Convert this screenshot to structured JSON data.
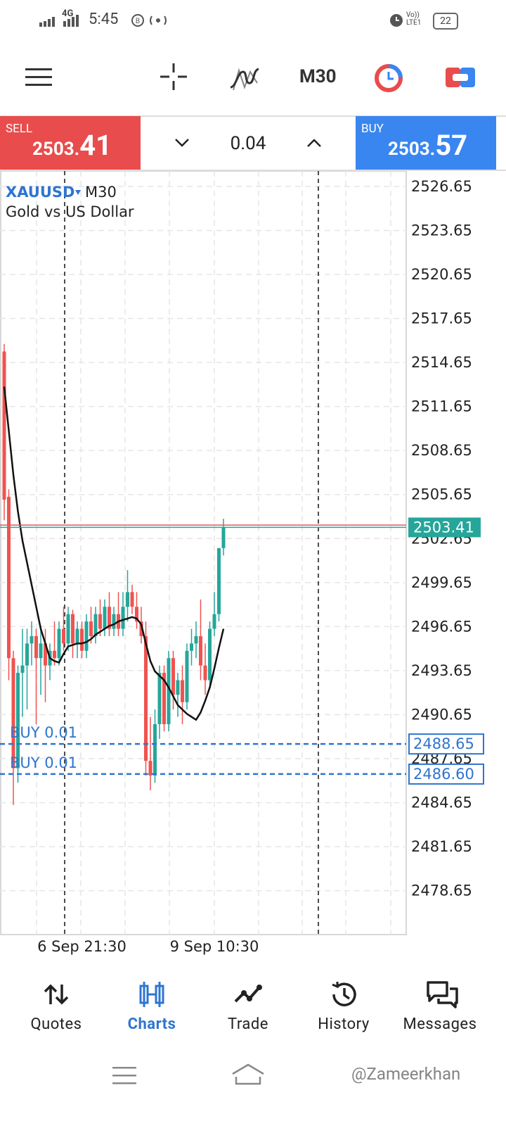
{
  "status_bar": {
    "network": "4G",
    "time": "5:45",
    "volte": "Vo)) LTE1",
    "battery": "22"
  },
  "toolbar": {
    "timeframe": "M30"
  },
  "trade_panel": {
    "sell": {
      "label": "SELL",
      "price_main": "2503.",
      "price_pips": "41"
    },
    "volume": "0.04",
    "buy": {
      "label": "BUY",
      "price_main": "2503.",
      "price_pips": "57"
    }
  },
  "chart_data": {
    "type": "candlestick",
    "symbol": "XAUUSD",
    "timeframe": "M30",
    "description": "Gold vs US Dollar",
    "categories": [
      null,
      null,
      null,
      null,
      null,
      null,
      null,
      null,
      null,
      null,
      null,
      null,
      null,
      null,
      null,
      null,
      null,
      "6 Sep 21:30",
      null,
      null,
      null,
      null,
      null,
      null,
      null,
      null,
      null,
      null,
      null,
      null,
      null,
      null,
      null,
      null,
      null,
      null,
      null,
      null,
      null,
      null,
      null,
      null,
      null,
      null,
      null,
      null,
      "9 Sep 10:30",
      null,
      null
    ],
    "open": [
      2515.4,
      2505.5,
      2494.5,
      2487,
      2493.5,
      2494,
      2495.5,
      2496,
      2494.5,
      2495.5,
      2494,
      2495,
      2494.5,
      2496.5,
      2495.5,
      2497.5,
      2495.5,
      2496.5,
      2495,
      2497,
      2496,
      2497.5,
      2496.5,
      2498,
      2496.5,
      2497.5,
      2496.5,
      2498,
      2499,
      2498,
      2497,
      2496,
      2487.5,
      2486.5,
      2490,
      2493.5,
      2490,
      2494.5,
      2492,
      2493,
      2491.5,
      2495,
      2495.5,
      2496,
      2494,
      2493,
      2496.5,
      2497.5,
      2502
    ],
    "high": [
      2515.9,
      2506,
      2495,
      2494,
      2496.5,
      2496.5,
      2497,
      2496.5,
      2496.7,
      2496.5,
      2495.5,
      2497,
      2497,
      2498,
      2498,
      2497.8,
      2497,
      2497,
      2497.5,
      2498,
      2498,
      2498.5,
      2498.5,
      2499,
      2498,
      2499,
      2499,
      2500.5,
      2499.5,
      2499,
      2498,
      2497,
      2490.5,
      2491,
      2494,
      2494,
      2495,
      2495,
      2493.5,
      2494,
      2495.5,
      2496.5,
      2497,
      2498.5,
      2495.5,
      2497,
      2499,
      2502,
      2504
    ],
    "low": [
      2503.9,
      2493,
      2484.5,
      2486,
      2490.5,
      2491,
      2494,
      2490,
      2492,
      2491.5,
      2493,
      2494,
      2494,
      2495,
      2495,
      2494.5,
      2494.5,
      2494.5,
      2494.5,
      2495.5,
      2495.5,
      2496,
      2496,
      2496,
      2496,
      2496,
      2496,
      2497,
      2497.5,
      2496.5,
      2495.5,
      2486.5,
      2485.5,
      2486,
      2489,
      2489.5,
      2489.5,
      2491,
      2490.5,
      2490,
      2491,
      2494,
      2494.5,
      2493,
      2492,
      2492.5,
      2496,
      2497,
      2501.5
    ],
    "close": [
      2505.3,
      2494.5,
      2487,
      2493.5,
      2494,
      2495.5,
      2496,
      2494.5,
      2495.5,
      2494,
      2495,
      2494.5,
      2496.5,
      2495.5,
      2497.5,
      2495.5,
      2496.5,
      2495,
      2497,
      2496,
      2497.5,
      2496.5,
      2498,
      2496.5,
      2497.5,
      2496.5,
      2498,
      2499,
      2498,
      2497,
      2496,
      2487.5,
      2486.5,
      2490,
      2493.5,
      2490,
      2494.5,
      2492,
      2493,
      2491.5,
      2495,
      2495.5,
      2496,
      2494,
      2493,
      2496.5,
      2497.5,
      2502,
      2503.41
    ],
    "up_color": "#26a69a",
    "down_color": "#ef5350",
    "ma": {
      "color": "#111111",
      "values": [
        2513,
        2510,
        2507,
        2504.5,
        2502.5,
        2501,
        2499.5,
        2498,
        2496.5,
        2495.5,
        2494.5,
        2494.3,
        2494.2,
        2494.8,
        2495.3,
        2495.4,
        2495.5,
        2495.5,
        2495.6,
        2495.8,
        2496.1,
        2496.3,
        2496.5,
        2496.7,
        2496.8,
        2497,
        2497.1,
        2497.2,
        2497.3,
        2497.2,
        2496.8,
        2495.5,
        2494.3,
        2493.6,
        2493.3,
        2493,
        2492.5,
        2491.9,
        2491.3,
        2491,
        2490.7,
        2490.5,
        2490.3,
        2490.8,
        2491.6,
        2492.5,
        2493.8,
        2495.2,
        2496.5
      ]
    },
    "ylim": [
      2475.66,
      2527.7
    ],
    "yticks": [
      2526.65,
      2523.65,
      2520.65,
      2517.65,
      2514.65,
      2511.65,
      2508.65,
      2505.65,
      2502.65,
      2499.65,
      2496.65,
      2493.65,
      2490.65,
      2487.65,
      2484.65,
      2481.65,
      2478.65
    ],
    "grid": true,
    "bid": 2503.41,
    "bid_color": "#26a69a",
    "ask": 2503.57,
    "ask_color": "#ef5350",
    "orders": [
      {
        "label": "BUY 0.01",
        "price": 2488.65
      },
      {
        "label": "BUY 0.01",
        "price": {
          "value": 2486.6,
          "label": "2486.60"
        }
      }
    ],
    "order_color": "#2f74d0"
  },
  "bottom_nav": {
    "tabs": [
      "Quotes",
      "Charts",
      "Trade",
      "History",
      "Messages"
    ],
    "active": "Charts"
  },
  "watermark": "@Zameerkhan"
}
